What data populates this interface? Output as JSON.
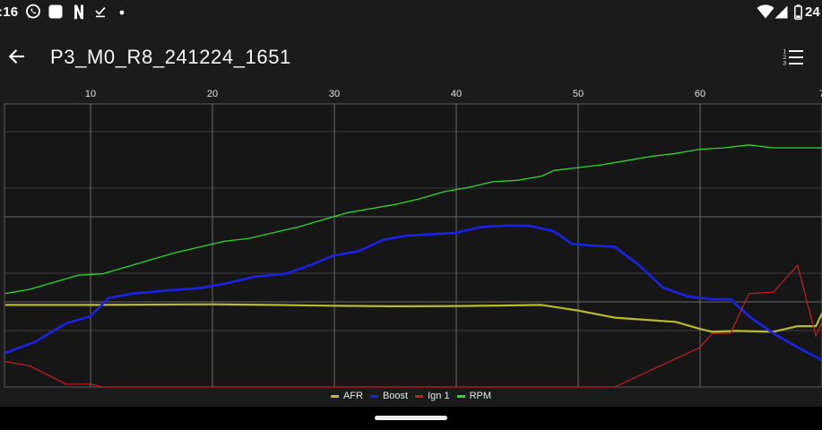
{
  "status_bar": {
    "time": ":16",
    "battery_percent": "24",
    "icons": [
      "whatsapp-icon",
      "app-square-icon",
      "netflix-icon",
      "download-done-icon",
      "notification-dot-icon",
      "wifi-icon",
      "signal-icon",
      "battery-icon"
    ]
  },
  "app_bar": {
    "title": "P3_M0_R8_241224_1651",
    "back_icon": "arrow-back-icon",
    "list_icon": "numbered-list-icon"
  },
  "colors": {
    "background": "#1b1b1b",
    "plot_background": "#161616",
    "grid": "#5a5a5a",
    "afr": "#b9bb2d",
    "boost": "#1a22e6",
    "ign1": "#c81e1e",
    "rpm": "#2fd62f"
  },
  "chart_data": {
    "type": "line",
    "x_ticks": [
      "10",
      "20",
      "30",
      "40",
      "50",
      "60",
      "7"
    ],
    "x_range": [
      3,
      70
    ],
    "y_range": [
      0,
      100
    ],
    "grid": true,
    "y_axis_labels": false,
    "legend_position": "bottom-center",
    "series": [
      {
        "name": "AFR",
        "color": "#b9bb2d",
        "points": [
          [
            3,
            29
          ],
          [
            10,
            29
          ],
          [
            20,
            29.2
          ],
          [
            25,
            29
          ],
          [
            30,
            28.7
          ],
          [
            35,
            28.5
          ],
          [
            40,
            28.6
          ],
          [
            44,
            28.8
          ],
          [
            47,
            29
          ],
          [
            50,
            27
          ],
          [
            53,
            24.5
          ],
          [
            58,
            23
          ],
          [
            60,
            20.5
          ],
          [
            61,
            19.5
          ],
          [
            63,
            19.8
          ],
          [
            66,
            19.5
          ],
          [
            68,
            21.5
          ],
          [
            69.5,
            21.5
          ],
          [
            70,
            26
          ]
        ]
      },
      {
        "name": "Boost",
        "color": "#1a22e6",
        "points": [
          [
            3,
            12
          ],
          [
            5.5,
            16
          ],
          [
            8,
            22.5
          ],
          [
            10,
            25
          ],
          [
            11.5,
            31.5
          ],
          [
            13.5,
            33
          ],
          [
            16,
            34
          ],
          [
            19,
            35
          ],
          [
            21,
            36.5
          ],
          [
            23.5,
            39
          ],
          [
            26,
            40
          ],
          [
            28,
            43
          ],
          [
            30,
            46.5
          ],
          [
            32,
            48
          ],
          [
            34,
            52
          ],
          [
            36,
            53.5
          ],
          [
            38,
            54
          ],
          [
            40,
            54.5
          ],
          [
            42,
            56.5
          ],
          [
            44,
            57
          ],
          [
            46,
            57
          ],
          [
            48,
            55
          ],
          [
            49.5,
            50.5
          ],
          [
            51,
            50
          ],
          [
            53,
            49.5
          ],
          [
            55,
            43
          ],
          [
            57,
            35
          ],
          [
            59,
            32
          ],
          [
            61,
            31
          ],
          [
            62.5,
            31
          ],
          [
            64,
            25
          ],
          [
            66,
            19
          ],
          [
            68,
            14
          ],
          [
            70,
            9.5
          ]
        ]
      },
      {
        "name": "Ign 1",
        "color": "#c81e1e",
        "points": [
          [
            3,
            9
          ],
          [
            5,
            7.5
          ],
          [
            8,
            1
          ],
          [
            10,
            1
          ],
          [
            11,
            0
          ],
          [
            40,
            0
          ],
          [
            53,
            0
          ],
          [
            56,
            6
          ],
          [
            58,
            10
          ],
          [
            60,
            14
          ],
          [
            61,
            19
          ],
          [
            62.5,
            19
          ],
          [
            64,
            33
          ],
          [
            66,
            33.5
          ],
          [
            68,
            43
          ],
          [
            69.5,
            18
          ],
          [
            70,
            23
          ]
        ]
      },
      {
        "name": "RPM",
        "color": "#2fd62f",
        "points": [
          [
            3,
            33
          ],
          [
            5,
            34.5
          ],
          [
            7,
            37
          ],
          [
            9,
            39.5
          ],
          [
            11,
            40
          ],
          [
            13,
            42.5
          ],
          [
            15,
            45
          ],
          [
            17,
            47.5
          ],
          [
            19,
            49.5
          ],
          [
            21,
            51.5
          ],
          [
            23,
            52.5
          ],
          [
            25,
            54.5
          ],
          [
            27,
            56.5
          ],
          [
            29,
            59
          ],
          [
            31,
            61.5
          ],
          [
            33,
            63
          ],
          [
            35,
            64.5
          ],
          [
            37,
            66.5
          ],
          [
            39,
            69
          ],
          [
            41,
            70.5
          ],
          [
            43,
            72.5
          ],
          [
            45,
            73
          ],
          [
            47,
            74.5
          ],
          [
            48,
            76.5
          ],
          [
            50,
            77.5
          ],
          [
            52,
            78.5
          ],
          [
            54,
            80
          ],
          [
            56,
            81.5
          ],
          [
            58,
            82.5
          ],
          [
            60,
            84
          ],
          [
            62,
            84.5
          ],
          [
            64,
            85.5
          ],
          [
            66,
            84.5
          ],
          [
            68,
            84.5
          ],
          [
            70,
            84.5
          ]
        ]
      }
    ]
  },
  "legend": {
    "items": [
      {
        "label": "AFR",
        "color": "#b9bb2d"
      },
      {
        "label": "Boost",
        "color": "#1a22e6"
      },
      {
        "label": "Ign 1",
        "color": "#c81e1e"
      },
      {
        "label": "RPM",
        "color": "#2fd62f"
      }
    ]
  }
}
